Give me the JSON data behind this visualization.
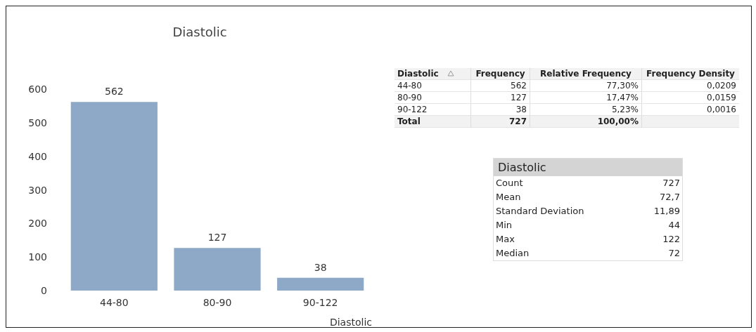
{
  "chart_data": [
    {
      "type": "bar",
      "title": "Diastolic",
      "xlabel": "Diastolic",
      "categories": [
        "44-80",
        "80-90",
        "90-122"
      ],
      "values": [
        562,
        127,
        38
      ],
      "color": "#8ea9c8",
      "ylim": [
        0,
        600
      ],
      "yticks": [
        0,
        100,
        200,
        300,
        400,
        500,
        600
      ],
      "data_labels": true,
      "grid": false
    },
    {
      "type": "other",
      "annotations": [
        "Diastolic",
        "Frequency",
        "Relative Frequency",
        "Frequency Density",
        "44-80",
        "562",
        "77,30%",
        "0,0209",
        "80-90",
        "127",
        "17,47%",
        "0,0159",
        "90-122",
        "38",
        "5,23%",
        "0,0016",
        "Total",
        "727",
        "100,00%"
      ]
    },
    {
      "type": "other",
      "title": "Diastolic",
      "annotations": [
        "Count",
        "727",
        "Mean",
        "72,7",
        "Standard Deviation",
        "11,89",
        "Min",
        "44",
        "Max",
        "122",
        "Median",
        "72"
      ]
    }
  ]
}
